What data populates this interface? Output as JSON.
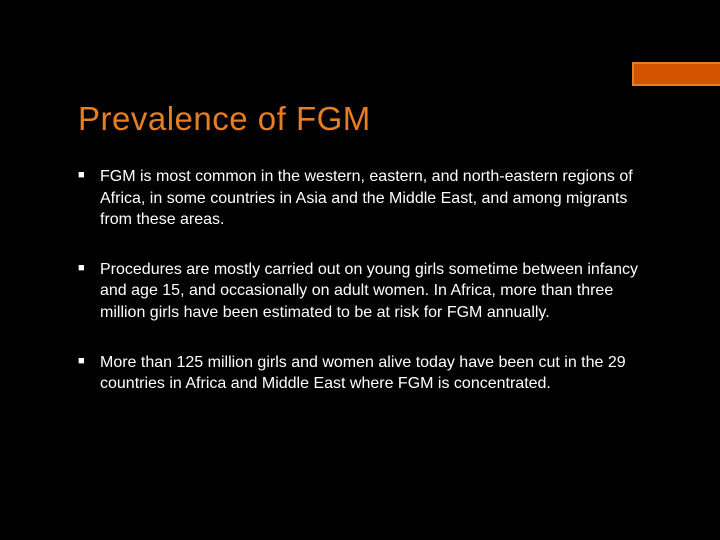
{
  "slide": {
    "title": "Prevalence of FGM",
    "accent_color": "#e67e22",
    "accent_bar_color": "#d35400",
    "background_color": "#000000",
    "text_color": "#ffffff",
    "title_fontsize": 33,
    "body_fontsize": 16,
    "bullets": [
      "FGM is most common in the western, eastern, and north-eastern regions of Africa, in some countries in Asia and the Middle East, and among migrants from these areas.",
      "Procedures are mostly carried out on young girls sometime between infancy and age 15, and occasionally on adult women. In Africa, more than three million girls have been estimated to be at risk for FGM annually.",
      "More than 125 million girls and women alive today have been cut in the 29 countries in Africa and Middle East where FGM is concentrated."
    ]
  }
}
